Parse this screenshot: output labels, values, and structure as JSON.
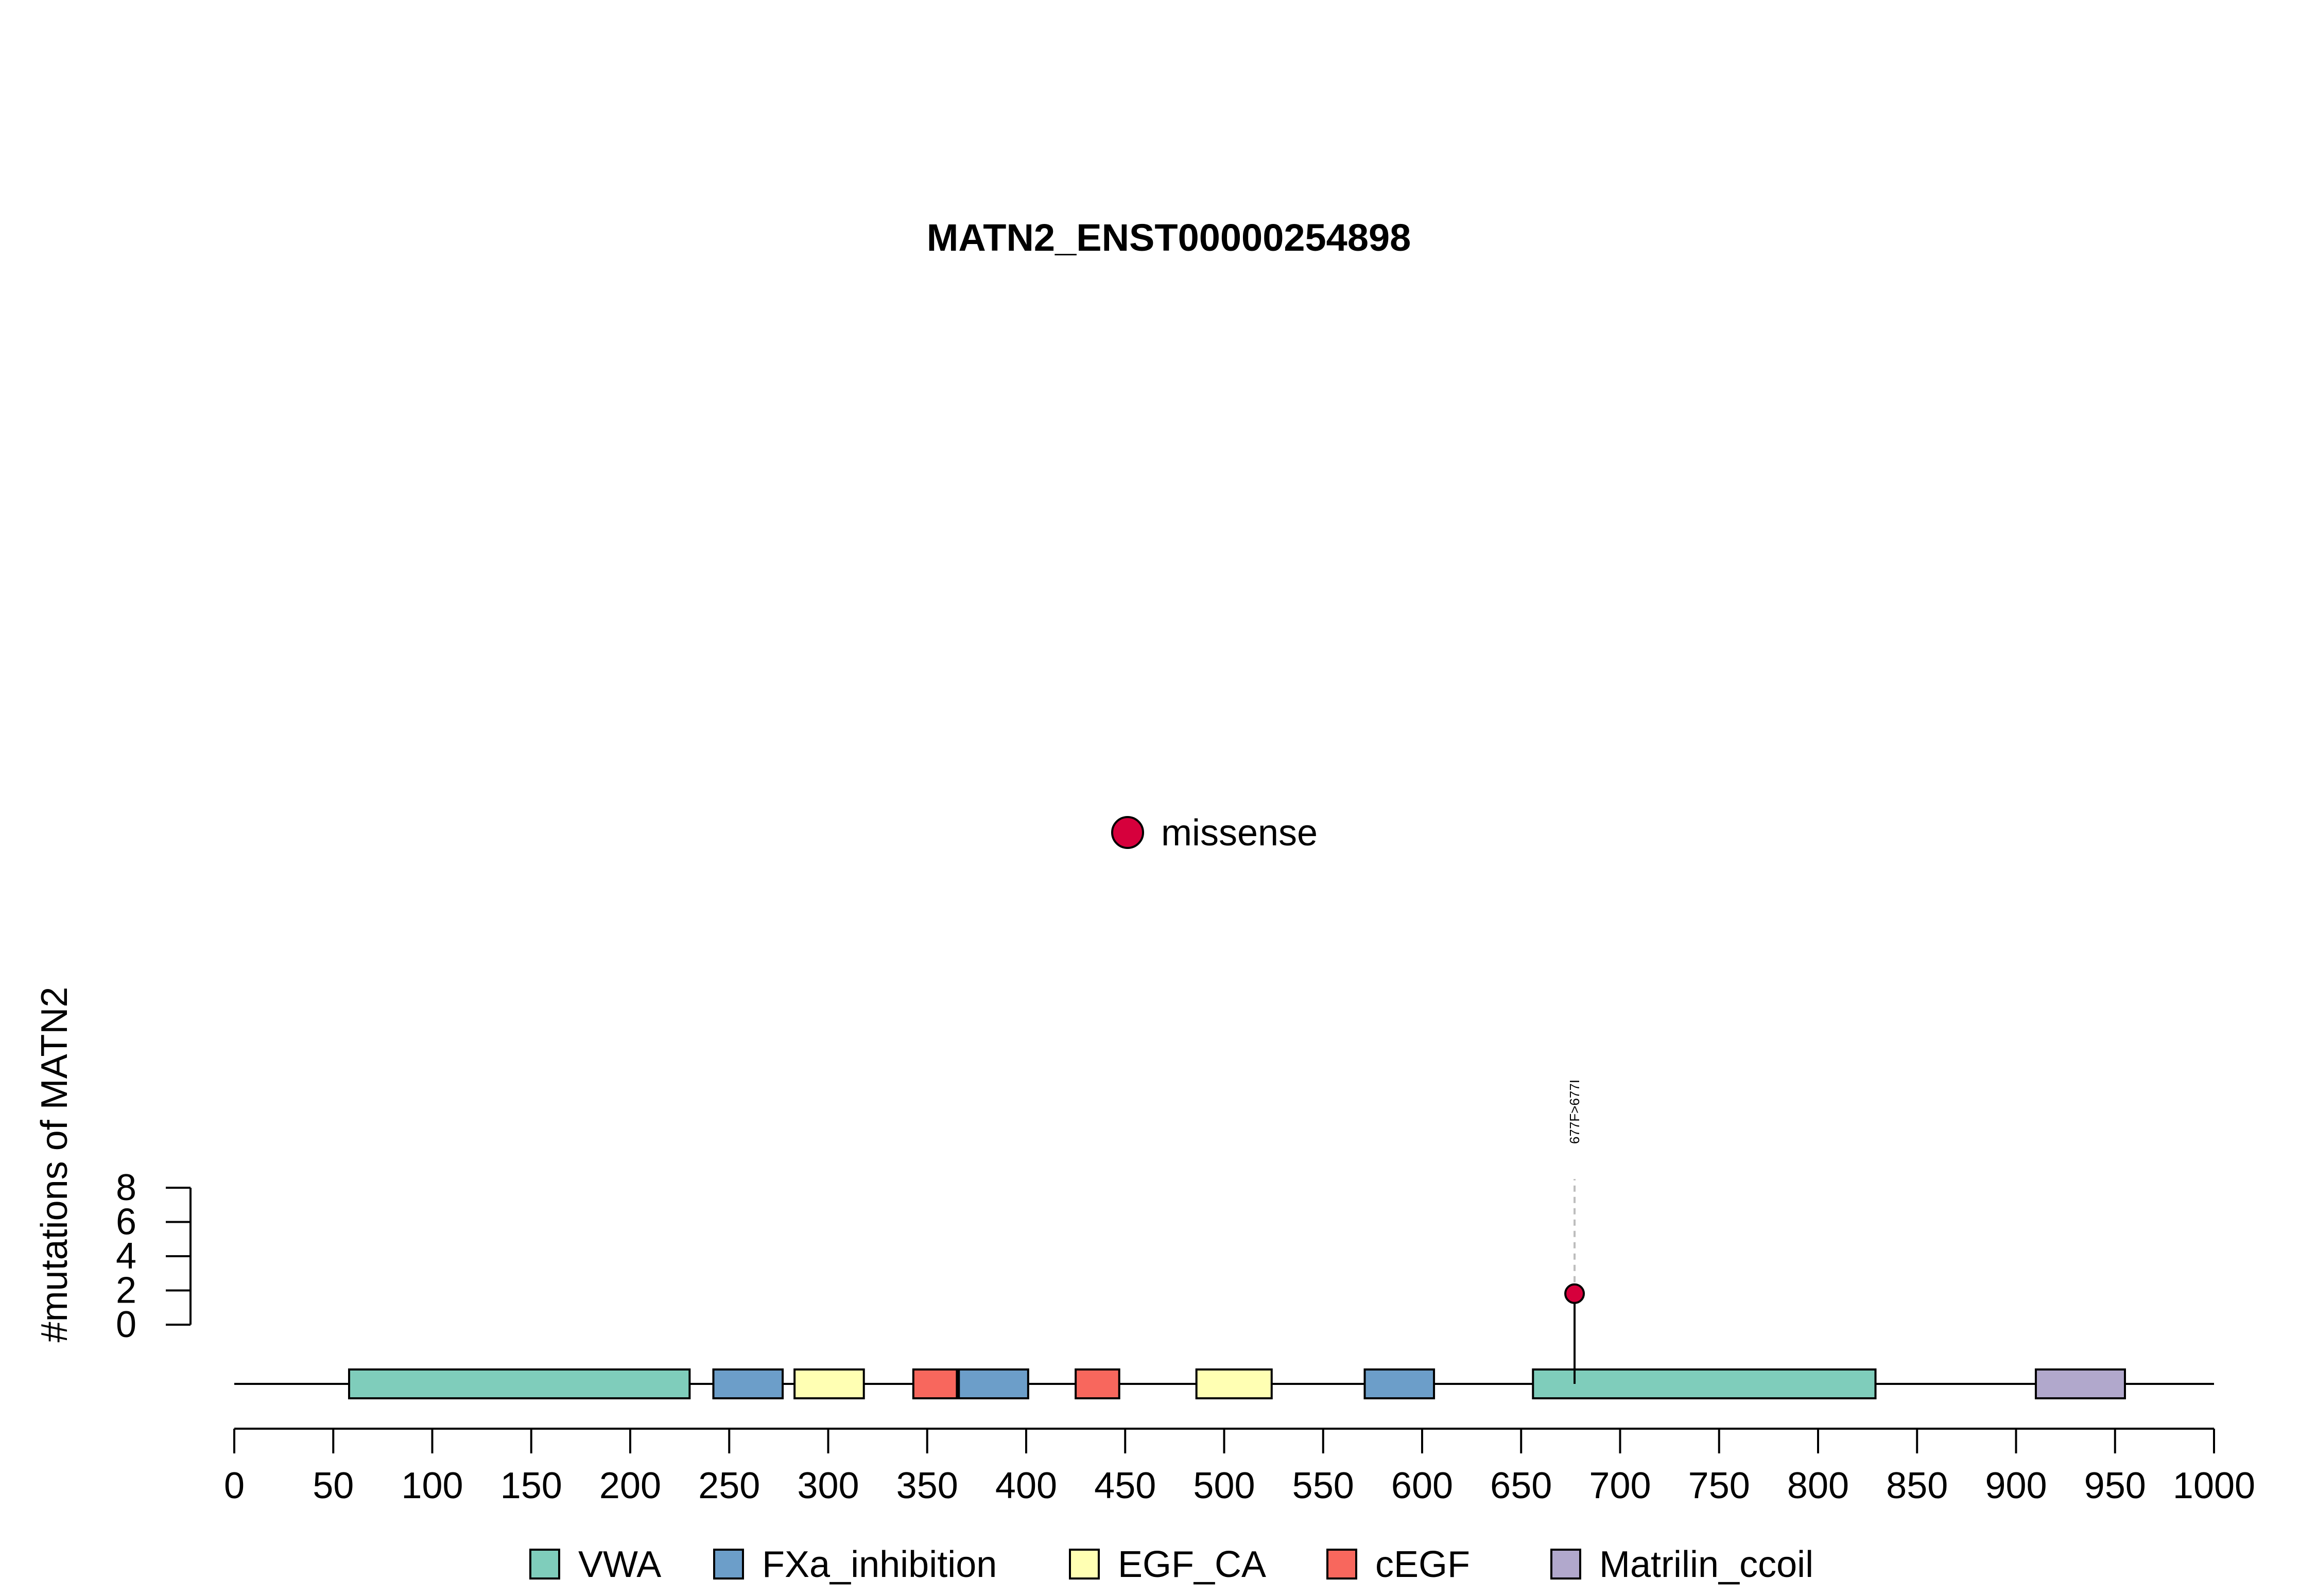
{
  "chart_data": {
    "type": "lollipop",
    "title": "MATN2_ENST00000254898",
    "ylabel": "#mutations of MATN2",
    "xlim": [
      0,
      1000
    ],
    "x_ticks": [
      0,
      50,
      100,
      150,
      200,
      250,
      300,
      350,
      400,
      450,
      500,
      550,
      600,
      650,
      700,
      750,
      800,
      850,
      900,
      950,
      1000
    ],
    "ylim": [
      0,
      8
    ],
    "y_ticks": [
      0,
      2,
      4,
      6,
      8
    ],
    "mutation_legend": [
      {
        "label": "missense",
        "color": "#d6003c"
      }
    ],
    "mutations": [
      {
        "position": 677,
        "count": 1,
        "label": "677F>677I",
        "type": "missense",
        "color": "#d6003c"
      }
    ],
    "domains": [
      {
        "name": "VWA",
        "start": 58,
        "end": 230,
        "color": "#7fcdbb"
      },
      {
        "name": "FXa_inhibition",
        "start": 242,
        "end": 277,
        "color": "#6c9ec9"
      },
      {
        "name": "EGF_CA",
        "start": 283,
        "end": 318,
        "color": "#ffffb3"
      },
      {
        "name": "cEGF",
        "start": 343,
        "end": 365,
        "color": "#f8675d"
      },
      {
        "name": "FXa_inhibition",
        "start": 366,
        "end": 401,
        "color": "#6c9ec9"
      },
      {
        "name": "cEGF",
        "start": 425,
        "end": 447,
        "color": "#f8675d"
      },
      {
        "name": "EGF_CA",
        "start": 486,
        "end": 524,
        "color": "#ffffb3"
      },
      {
        "name": "FXa_inhibition",
        "start": 571,
        "end": 606,
        "color": "#6c9ec9"
      },
      {
        "name": "VWA",
        "start": 656,
        "end": 829,
        "color": "#7fcdbb"
      },
      {
        "name": "Matrilin_ccoil",
        "start": 910,
        "end": 955,
        "color": "#b1a8cc"
      }
    ],
    "domain_legend": [
      {
        "name": "VWA",
        "color": "#7fcdbb"
      },
      {
        "name": "FXa_inhibition",
        "color": "#6c9ec9"
      },
      {
        "name": "EGF_CA",
        "color": "#ffffb3"
      },
      {
        "name": "cEGF",
        "color": "#f8675d"
      },
      {
        "name": "Matrilin_ccoil",
        "color": "#b1a8cc"
      }
    ]
  }
}
